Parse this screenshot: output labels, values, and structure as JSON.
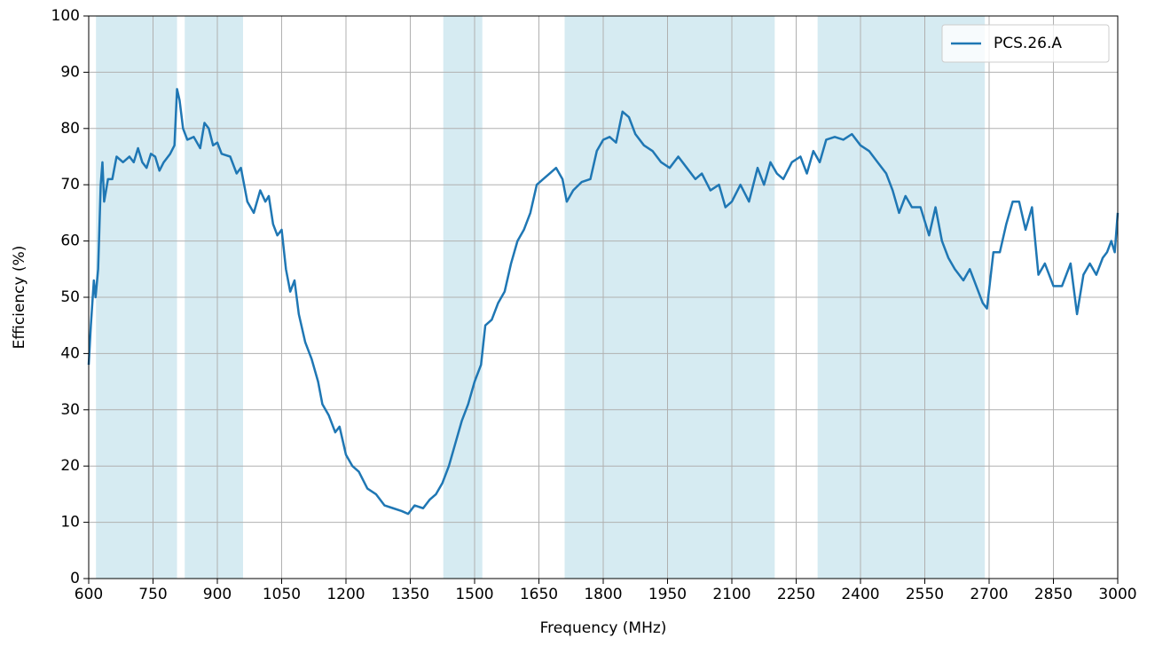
{
  "chart_data": {
    "type": "line",
    "xlabel": "Frequency (MHz)",
    "ylabel": "Efficiency (%)",
    "x": [
      600,
      605,
      612,
      616,
      622,
      628,
      632,
      636,
      645,
      655,
      665,
      680,
      695,
      705,
      715,
      725,
      735,
      745,
      755,
      765,
      775,
      790,
      800,
      806,
      812,
      820,
      830,
      845,
      860,
      870,
      880,
      890,
      900,
      910,
      930,
      945,
      955,
      970,
      985,
      1000,
      1012,
      1020,
      1030,
      1040,
      1050,
      1060,
      1070,
      1080,
      1090,
      1105,
      1120,
      1135,
      1145,
      1160,
      1175,
      1185,
      1200,
      1215,
      1230,
      1250,
      1270,
      1290,
      1310,
      1330,
      1345,
      1360,
      1380,
      1395,
      1410,
      1425,
      1440,
      1455,
      1470,
      1485,
      1500,
      1515,
      1525,
      1540,
      1555,
      1570,
      1585,
      1600,
      1615,
      1630,
      1645,
      1660,
      1675,
      1690,
      1705,
      1715,
      1730,
      1750,
      1770,
      1785,
      1800,
      1815,
      1830,
      1845,
      1860,
      1875,
      1895,
      1915,
      1935,
      1955,
      1975,
      1995,
      2015,
      2030,
      2050,
      2070,
      2085,
      2100,
      2120,
      2140,
      2160,
      2175,
      2190,
      2205,
      2220,
      2240,
      2260,
      2275,
      2290,
      2305,
      2320,
      2340,
      2360,
      2380,
      2400,
      2420,
      2440,
      2460,
      2475,
      2490,
      2505,
      2520,
      2540,
      2560,
      2575,
      2590,
      2605,
      2620,
      2640,
      2655,
      2670,
      2685,
      2695,
      2710,
      2725,
      2740,
      2755,
      2770,
      2785,
      2800,
      2815,
      2830,
      2850,
      2870,
      2890,
      2905,
      2920,
      2935,
      2950,
      2965,
      2975,
      2985,
      2993,
      3000
    ],
    "series": [
      {
        "name": "PCS.26.A",
        "color": "#1f77b4",
        "values": [
          38,
          45,
          53,
          50,
          55,
          70,
          74,
          67,
          71,
          71,
          75,
          74,
          75,
          74,
          76.5,
          74,
          73,
          75.5,
          75,
          72.5,
          74,
          75.5,
          77,
          87,
          85,
          80,
          78,
          78.5,
          76.5,
          81,
          80,
          77,
          77.5,
          75.5,
          75,
          72,
          73,
          67,
          65,
          69,
          67,
          68,
          63,
          61,
          62,
          55,
          51,
          53,
          47,
          42,
          39,
          35,
          31,
          29,
          26,
          27,
          22,
          20,
          19,
          16,
          15,
          13,
          12.5,
          12,
          11.5,
          13,
          12.5,
          14,
          15,
          17,
          20,
          24,
          28,
          31,
          35,
          38,
          45,
          46,
          49,
          51,
          56,
          60,
          62,
          65,
          70,
          71,
          72,
          73,
          71,
          67,
          69,
          70.5,
          71,
          76,
          78,
          78.5,
          77.5,
          83,
          82,
          79,
          77,
          76,
          74,
          73,
          75,
          73,
          71,
          72,
          69,
          70,
          66,
          67,
          70,
          67,
          73,
          70,
          74,
          72,
          71,
          74,
          75,
          72,
          76,
          74,
          78,
          78.5,
          78,
          79,
          77,
          76,
          74,
          72,
          69,
          65,
          68,
          66,
          66,
          61,
          66,
          60,
          57,
          55,
          53,
          55,
          52,
          49,
          48,
          58,
          58,
          63,
          67,
          67,
          62,
          66,
          54,
          56,
          52,
          52,
          56,
          47,
          54,
          56,
          54,
          57,
          58,
          60,
          58,
          65
        ]
      }
    ],
    "bands": [
      [
        617,
        806
      ],
      [
        824,
        960
      ],
      [
        1427,
        1518
      ],
      [
        1710,
        2200
      ],
      [
        2300,
        2690
      ]
    ],
    "band_color": "#add8e6",
    "xlim": [
      600,
      3000
    ],
    "xticks": [
      600,
      750,
      900,
      1050,
      1200,
      1350,
      1500,
      1650,
      1800,
      1950,
      2100,
      2250,
      2400,
      2550,
      2700,
      2850,
      3000
    ],
    "ylim": [
      0,
      100
    ],
    "yticks": [
      0,
      10,
      20,
      30,
      40,
      50,
      60,
      70,
      80,
      90,
      100
    ],
    "grid": true,
    "legend": "upper right"
  }
}
